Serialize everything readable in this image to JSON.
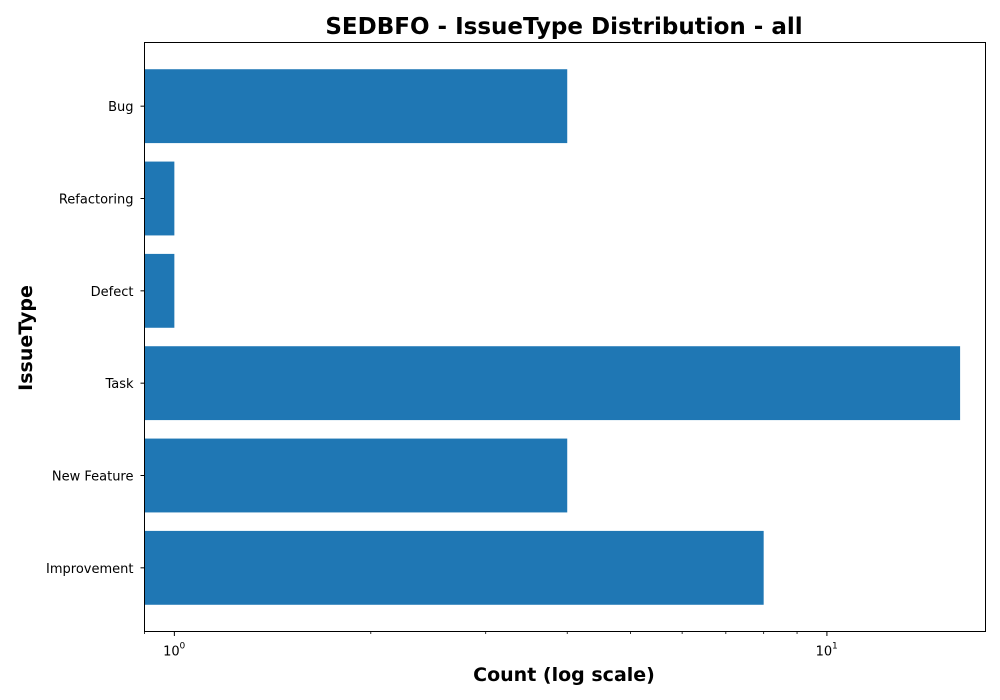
{
  "chart_data": {
    "type": "bar",
    "orientation": "horizontal",
    "title": "SEDBFO - IssueType Distribution - all",
    "xlabel": "Count (log scale)",
    "ylabel": "IssueType",
    "x_scale": "log",
    "xlim": [
      0.9,
      17.5
    ],
    "x_ticks": [
      {
        "value": 1,
        "base": "10",
        "exp": "0"
      },
      {
        "value": 10,
        "base": "10",
        "exp": "1"
      }
    ],
    "categories": [
      "Bug",
      "Refactoring",
      "Defect",
      "Task",
      "New Feature",
      "Improvement"
    ],
    "values": [
      4,
      1,
      1,
      16,
      4,
      8
    ],
    "bar_color": "#1f77b4",
    "grid": false,
    "legend": false
  }
}
